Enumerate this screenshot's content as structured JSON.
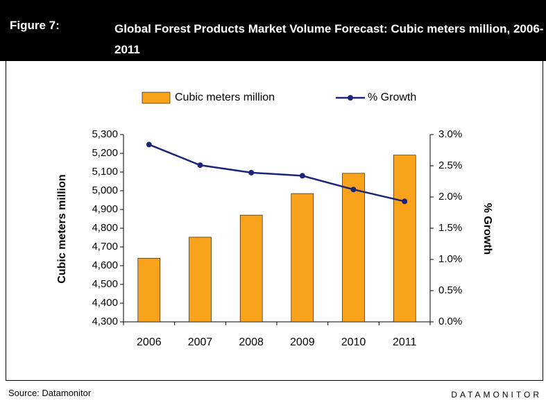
{
  "chart_data": {
    "type": "bar",
    "figure_label": "Figure 7:",
    "title": "Global Forest Products Market Volume Forecast: Cubic meters million, 2006-2011",
    "categories": [
      "2006",
      "2007",
      "2008",
      "2009",
      "2010",
      "2011"
    ],
    "series": [
      {
        "name": "Cubic meters million",
        "type": "bar",
        "color": "#f8a31b",
        "values": [
          4640,
          4752,
          4870,
          4985,
          5093,
          5190
        ]
      },
      {
        "name": "% Growth",
        "type": "line",
        "axis": "y2",
        "color": "#1c2578",
        "values": [
          2.84,
          2.51,
          2.39,
          2.34,
          2.12,
          1.93
        ]
      }
    ],
    "ylabel": "Cubic meters million",
    "y2label": "% Growth",
    "ylim": [
      4300,
      5300
    ],
    "yticks": [
      {
        "value": 4300,
        "label": "4,300"
      },
      {
        "value": 4400,
        "label": "4,400"
      },
      {
        "value": 4500,
        "label": "4,500"
      },
      {
        "value": 4600,
        "label": "4,600"
      },
      {
        "value": 4700,
        "label": "4,700"
      },
      {
        "value": 4800,
        "label": "4,800"
      },
      {
        "value": 4900,
        "label": "4,900"
      },
      {
        "value": 5000,
        "label": "5,000"
      },
      {
        "value": 5100,
        "label": "5,100"
      },
      {
        "value": 5200,
        "label": "5,200"
      },
      {
        "value": 5300,
        "label": "5,300"
      }
    ],
    "y2lim": [
      0,
      3
    ],
    "y2ticks": [
      {
        "value": 0,
        "label": "0.0%"
      },
      {
        "value": 0.5,
        "label": "0.5%"
      },
      {
        "value": 1,
        "label": "1.0%"
      },
      {
        "value": 1.5,
        "label": "1.5%"
      },
      {
        "value": 2,
        "label": "2.0%"
      },
      {
        "value": 2.5,
        "label": "2.5%"
      },
      {
        "value": 3,
        "label": "3.0%"
      }
    ],
    "legend": "top",
    "source": "Source: Datamonitor",
    "brand": "DATAMONITOR"
  }
}
